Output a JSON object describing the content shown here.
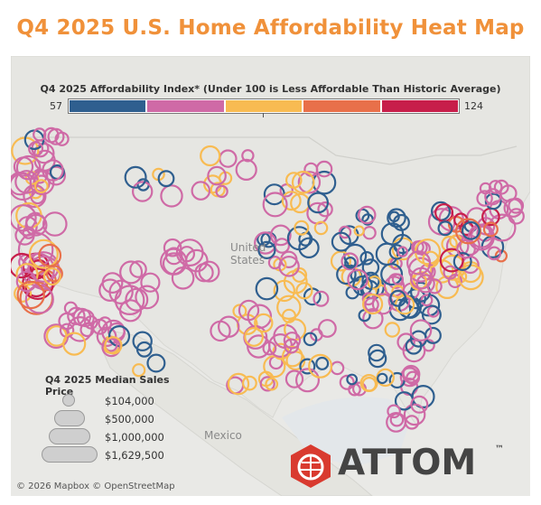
{
  "title": "Q4 2025 U.S. Home Affordability Heat Map",
  "legend": {
    "title": "Q4 2025 Affordability Index* (Under 100 is Less Affordable Than Historic Average)",
    "min_label": "57",
    "max_label": "124",
    "colors": [
      "#2f5f8f",
      "#cf6aa6",
      "#f8bb52",
      "#e8704a",
      "#c71e4a"
    ]
  },
  "size_legend": {
    "title": "Q4 2025 Median Sales Price",
    "items": [
      {
        "label": "$104,000"
      },
      {
        "label": "$500,000"
      },
      {
        "label": "$1,000,000"
      },
      {
        "label": "$1,629,500"
      }
    ]
  },
  "places": {
    "country_1": "United",
    "country_2": "States",
    "mexico": "Mexico"
  },
  "attribution": "© 2026 Mapbox © OpenStreetMap",
  "brand": {
    "name": "ATTOM",
    "tm": "™",
    "icon_color": "#d93a2f"
  },
  "colors": {
    "title": "#f0913a",
    "map_land": "#e9e9e6",
    "map_water": "#dfe4e8"
  }
}
